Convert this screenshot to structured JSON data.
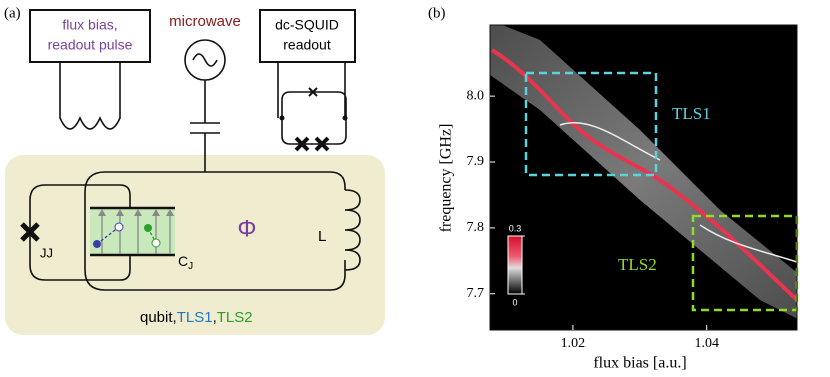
{
  "panel_a": {
    "label": "(a)",
    "flux_box": [
      "flux bias,",
      "readout pulse"
    ],
    "microwave": "microwave",
    "squid_box": [
      "dc-SQUID",
      "readout"
    ],
    "phi": "Φ",
    "inductor": "L",
    "junction": "JJ",
    "capacitor": {
      "main": "C",
      "sub": "J"
    },
    "caption": [
      "qubit,",
      "TLS1",
      ",",
      "TLS2"
    ]
  },
  "panel_b": {
    "label": "(b)",
    "xlabel": "flux bias [a.u.]",
    "ylabel": "frequency [GHz]",
    "xlim": [
      1.0076,
      1.0535
    ],
    "ylim": [
      7.645,
      8.108
    ],
    "xticks": [
      1.02,
      1.04
    ],
    "yticks": [
      {
        "value": 8,
        "label": "8.0"
      },
      7.9,
      7.8,
      7.7
    ],
    "colorbar": {
      "ticks": [
        0.3,
        0
      ]
    },
    "regions": [
      {
        "label": "TLS1"
      },
      {
        "label": "TLS2"
      }
    ]
  }
}
